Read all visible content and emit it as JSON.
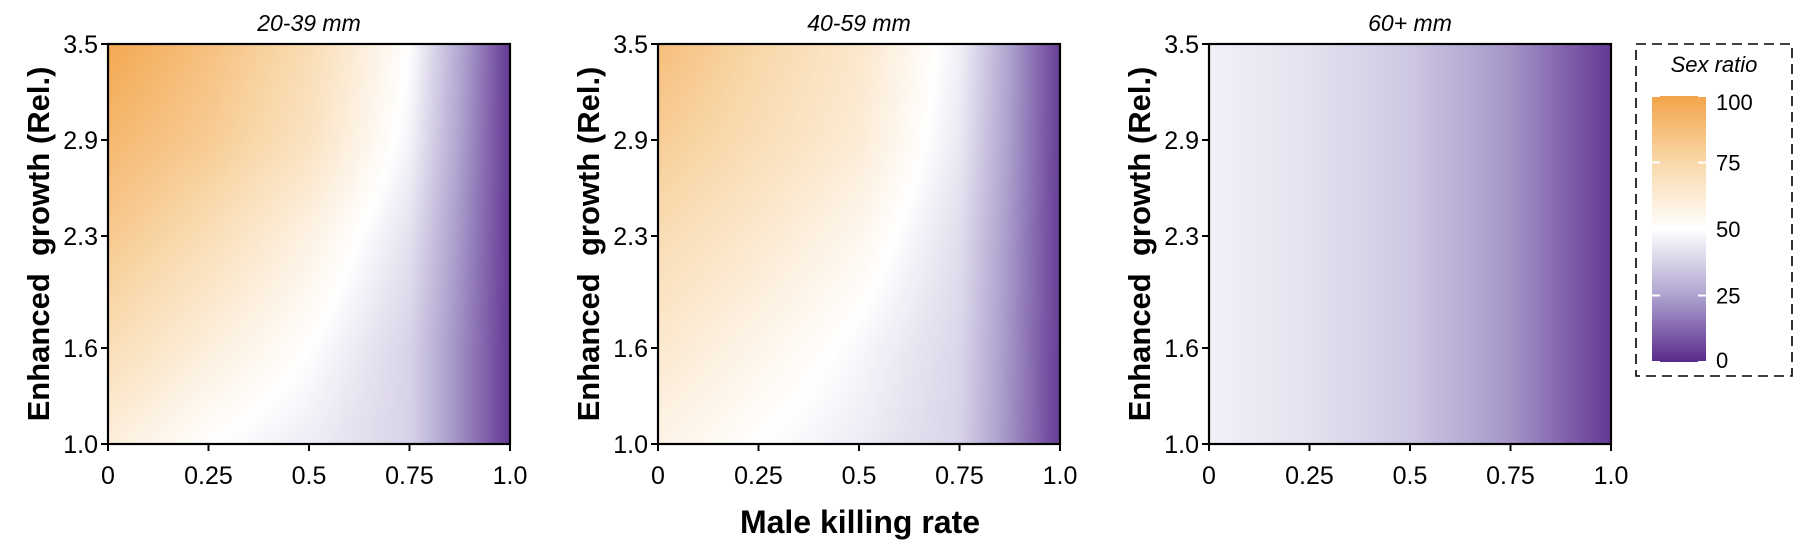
{
  "chart_data": {
    "type": "heatmap",
    "x_axis": {
      "label": "Male killing rate",
      "range": [
        0,
        1
      ],
      "ticks": [
        0,
        0.25,
        0.5,
        0.75,
        1.0
      ],
      "tick_labels": [
        "0",
        "0.25",
        "0.5",
        "0.75",
        "1.0"
      ]
    },
    "y_axis": {
      "label": "Enhanced  growth (Rel.)",
      "range": [
        1.0,
        3.5
      ],
      "ticks": [
        1.0,
        1.6,
        2.3,
        2.9,
        3.5
      ],
      "tick_labels": [
        "1.0",
        "1.6",
        "2.3",
        "2.9",
        "3.5"
      ]
    },
    "color_scale": {
      "title": "Sex ratio",
      "range": [
        0,
        100
      ],
      "ticks": [
        0,
        25,
        50,
        75,
        100
      ],
      "tick_labels": [
        "0",
        "25",
        "50",
        "75",
        "100"
      ],
      "colors": {
        "0": "#5a2a8c",
        "25": "#aea3cf",
        "50": "#ffffff",
        "75": "#f9d8aa",
        "100": "#f3a44a"
      }
    },
    "panels": [
      {
        "title": "20-39 mm",
        "x": [
          0,
          0.25,
          0.5,
          0.75,
          1.0
        ],
        "y": [
          1.0,
          1.6,
          2.3,
          2.9,
          3.5
        ],
        "values": [
          [
            60,
            50,
            45,
            38,
            3
          ],
          [
            71,
            60,
            50,
            38,
            3
          ],
          [
            82,
            71,
            58,
            42,
            3
          ],
          [
            90,
            81,
            68,
            47,
            3
          ],
          [
            98,
            86,
            72,
            50,
            3
          ]
        ]
      },
      {
        "title": "40-59 mm",
        "x": [
          0,
          0.25,
          0.5,
          0.75,
          1.0
        ],
        "y": [
          1.0,
          1.6,
          2.3,
          2.9,
          3.5
        ],
        "values": [
          [
            57,
            50,
            45,
            38,
            4
          ],
          [
            64,
            56,
            48,
            39,
            4
          ],
          [
            72,
            64,
            55,
            41,
            4
          ],
          [
            80,
            71,
            62,
            44,
            4
          ],
          [
            87,
            75,
            65,
            46,
            4
          ]
        ]
      },
      {
        "title": "60+ mm",
        "x": [
          0,
          0.25,
          0.5,
          0.75,
          1.0
        ],
        "y": [
          1.0,
          1.6,
          2.3,
          2.9,
          3.5
        ],
        "values": [
          [
            46,
            42,
            35,
            22,
            3
          ],
          [
            46,
            42,
            35,
            22,
            3
          ],
          [
            46,
            42,
            35,
            22,
            3
          ],
          [
            46,
            42,
            35,
            22,
            3
          ],
          [
            46,
            42,
            35,
            22,
            3
          ]
        ]
      }
    ]
  }
}
